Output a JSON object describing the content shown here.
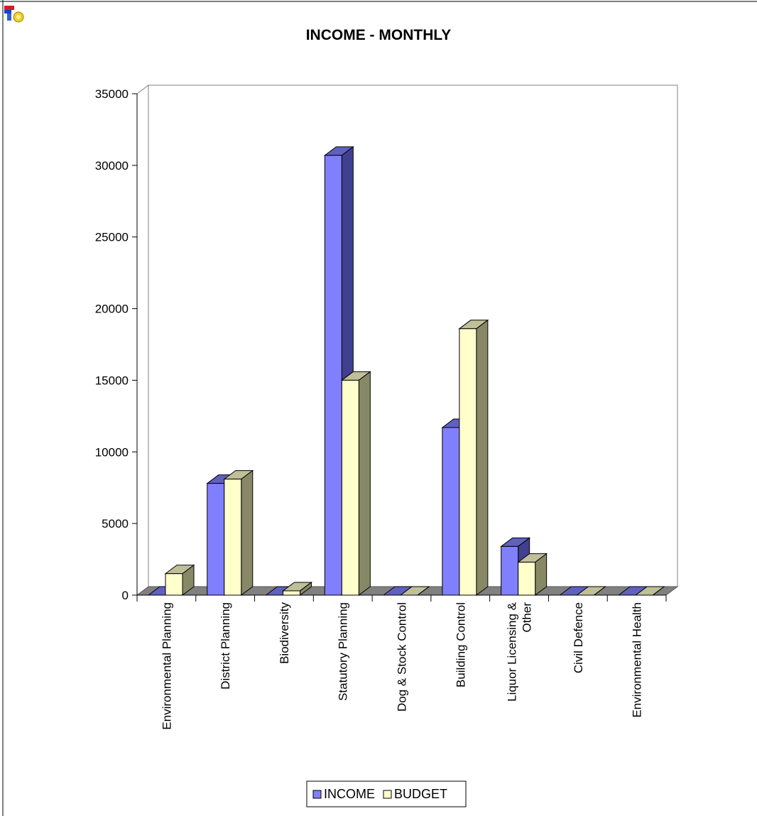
{
  "chart_data": {
    "type": "bar",
    "title": "INCOME - MONTHLY",
    "categories": [
      [
        "Environmental Planning"
      ],
      [
        "District Planning"
      ],
      [
        "Biodiversity"
      ],
      [
        "Statutory Planning"
      ],
      [
        "Dog & Stock Control"
      ],
      [
        "Building Control"
      ],
      [
        "Liquor Licensing &",
        "Other"
      ],
      [
        "Civil Defence"
      ],
      [
        "Environmental Health"
      ]
    ],
    "series": [
      {
        "name": "INCOME",
        "color": "#8080ff",
        "side": "#404090",
        "values": [
          0,
          7800,
          0,
          30700,
          0,
          11700,
          3400,
          0,
          0
        ]
      },
      {
        "name": "BUDGET",
        "color": "#ffffcc",
        "side": "#888866",
        "values": [
          1500,
          8100,
          300,
          15000,
          0,
          18600,
          2300,
          0,
          0
        ]
      }
    ],
    "ylim": [
      0,
      35000
    ],
    "yticks": [
      0,
      5000,
      10000,
      15000,
      20000,
      25000,
      30000,
      35000
    ],
    "xlabel": "",
    "ylabel": "",
    "legend": "bottom",
    "grid": false
  },
  "app_icon": "chart-app-icon"
}
